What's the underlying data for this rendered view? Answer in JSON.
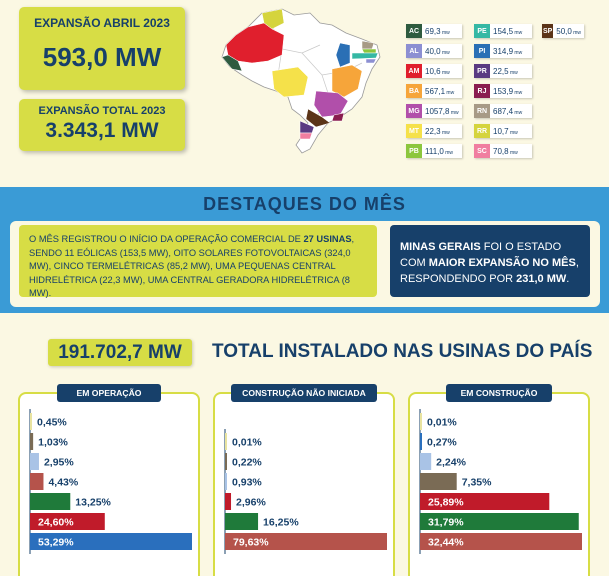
{
  "header": {
    "box1_title": "EXPANSÃO ABRIL 2023",
    "box1_value": "593,0 MW",
    "box2_title": "EXPANSÃO TOTAL 2023",
    "box2_value": "3.343,1 MW"
  },
  "legend": {
    "unit": "mw",
    "items": [
      {
        "code": "AC",
        "value": "69,3",
        "color": "#2e5b3f"
      },
      {
        "code": "AL",
        "value": "40,0",
        "color": "#8c8fd2"
      },
      {
        "code": "AM",
        "value": "10,6",
        "color": "#e01f2d"
      },
      {
        "code": "BA",
        "value": "567,1",
        "color": "#f6a53a"
      },
      {
        "code": "MG",
        "value": "1057,8",
        "color": "#b14faa"
      },
      {
        "code": "MT",
        "value": "22,3",
        "color": "#f5e14a"
      },
      {
        "code": "PB",
        "value": "111,0",
        "color": "#8cc63e"
      },
      {
        "code": "PE",
        "value": "154,5",
        "color": "#35b8a4"
      },
      {
        "code": "PI",
        "value": "314,9",
        "color": "#2a6fb5"
      },
      {
        "code": "PR",
        "value": "22,5",
        "color": "#5a3a82"
      },
      {
        "code": "RJ",
        "value": "153,9",
        "color": "#8a1d50"
      },
      {
        "code": "RN",
        "value": "687,4",
        "color": "#a79a86"
      },
      {
        "code": "RR",
        "value": "10,7",
        "color": "#d5d43d"
      },
      {
        "code": "SC",
        "value": "70,8",
        "color": "#f07ea0"
      },
      {
        "code": "SP",
        "value": "50,0",
        "color": "#5b3418"
      }
    ]
  },
  "destaques": {
    "title": "DESTAQUES DO MÊS",
    "text_pre": "O MÊS REGISTROU O INÍCIO DA OPERAÇÃO COMERCIAL DE ",
    "text_bold": "27 USINAS",
    "text_post": ", SENDO 11 EÓLICAS (153,5 MW), OITO SOLARES FOTOVOLTAICAS (324,0 MW), CINCO TERMELÉTRICAS (85,2 MW), UMA PEQUENAS CENTRAL HIDRELÉTRICA (22,3 MW), UMA CENTRAL GERADORA HIDRELÉTRICA (8 MW).",
    "side_bold1": "MINAS GERAIS",
    "side_text1": " FOI O ESTADO COM ",
    "side_bold2": "MAIOR EXPANSÃO NO MÊS",
    "side_text2": ", RESPONDENDO POR ",
    "side_bold3": "231,0 MW",
    "side_text3": "."
  },
  "total": {
    "value": "191.702,7 MW",
    "label": "TOTAL INSTALADO NAS USINAS DO PAÍS"
  },
  "colors": {
    "navy": "#17406a",
    "lime": "#d7dd45",
    "blue_band": "#3a9bd6"
  },
  "chart_data": [
    {
      "type": "bar",
      "title": "EM OPERAÇÃO",
      "values": [
        0.45,
        1.03,
        2.95,
        4.43,
        13.25,
        24.6,
        53.29
      ],
      "labels": [
        "0,45%",
        "1,03%",
        "2,95%",
        "4,43%",
        "13,25%",
        "24,60%",
        "53,29%"
      ],
      "colors": [
        "#e8e3a0",
        "#7a6b55",
        "#a9c3e6",
        "#b5534b",
        "#1f7a3a",
        "#c01b2a",
        "#2a6fbd"
      ],
      "label_inside": [
        false,
        false,
        false,
        false,
        false,
        true,
        true
      ]
    },
    {
      "type": "bar",
      "title": "CONSTRUÇÃO NÃO INICIADA",
      "values": [
        0.01,
        0.22,
        0.93,
        2.96,
        16.25,
        79.63
      ],
      "labels": [
        "0,01%",
        "0,22%",
        "0,93%",
        "2,96%",
        "16,25%",
        "79,63%"
      ],
      "colors": [
        "#e8e3a0",
        "#7a6b55",
        "#a9c3e6",
        "#c01b2a",
        "#1f7a3a",
        "#b5534b"
      ],
      "label_inside": [
        false,
        false,
        false,
        false,
        false,
        true
      ]
    },
    {
      "type": "bar",
      "title": "EM CONSTRUÇÃO",
      "values": [
        0.01,
        0.27,
        2.24,
        7.35,
        25.89,
        31.79,
        32.44
      ],
      "labels": [
        "0,01%",
        "0,27%",
        "2,24%",
        "7,35%",
        "25,89%",
        "31,79%",
        "32,44%"
      ],
      "colors": [
        "#e8e3a0",
        "#2a6fbd",
        "#a9c3e6",
        "#7a6b55",
        "#c01b2a",
        "#1f7a3a",
        "#b5534b"
      ],
      "label_inside": [
        false,
        false,
        false,
        false,
        true,
        true,
        true
      ]
    }
  ]
}
